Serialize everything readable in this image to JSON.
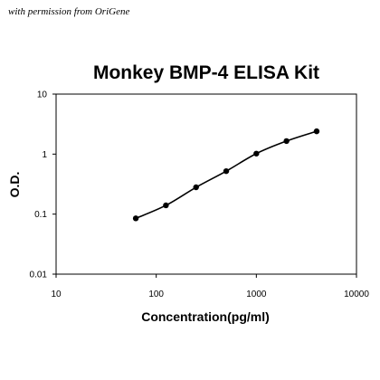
{
  "watermark": "with permission from OriGene",
  "chart_data": {
    "type": "scatter",
    "title": "Monkey BMP-4 ELISA Kit",
    "xlabel": "Concentration(pg/ml)",
    "ylabel": "O.D.",
    "x_scale": "log",
    "y_scale": "log",
    "xlim": [
      10,
      10000
    ],
    "ylim": [
      0.01,
      10
    ],
    "x_ticks": [
      "10",
      "100",
      "1000",
      "10000"
    ],
    "y_ticks": [
      "0.01",
      "0.1",
      "1",
      "10"
    ],
    "grid": false,
    "legend": "none",
    "series": [
      {
        "x": [
          62.5,
          125,
          250,
          500,
          1000,
          2000,
          4000
        ],
        "y": [
          0.085,
          0.14,
          0.28,
          0.52,
          1.02,
          1.65,
          2.4
        ],
        "markers": true,
        "fit_curve": true
      }
    ],
    "colors": {
      "line": "#000000",
      "marker": "#000000"
    }
  }
}
